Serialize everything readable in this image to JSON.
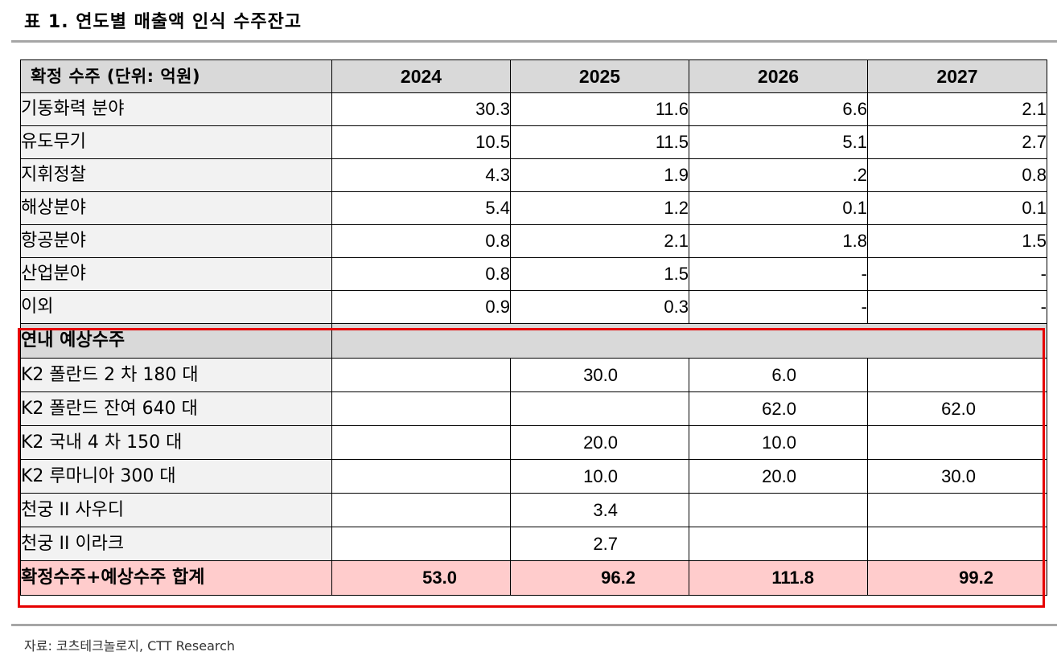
{
  "title": "표 1. 연도별 매출액 인식 수주잔고",
  "header": {
    "label": "확정 수주 (단위: 억원)",
    "years": [
      "2024",
      "2025",
      "2026",
      "2027"
    ]
  },
  "confirmed_rows": [
    {
      "label": "기동화력 분야",
      "values": [
        "30.3",
        "11.6",
        "6.6",
        "2.1"
      ]
    },
    {
      "label": "유도무기",
      "values": [
        "10.5",
        "11.5",
        "5.1",
        "2.7"
      ]
    },
    {
      "label": "지휘정찰",
      "values": [
        "4.3",
        "1.9",
        ".2",
        "0.8"
      ]
    },
    {
      "label": "해상분야",
      "values": [
        "5.4",
        "1.2",
        "0.1",
        "0.1"
      ]
    },
    {
      "label": "항공분야",
      "values": [
        "0.8",
        "2.1",
        "1.8",
        "1.5"
      ]
    },
    {
      "label": "산업분야",
      "values": [
        "0.8",
        "1.5",
        "-",
        "-"
      ]
    },
    {
      "label": "이외",
      "values": [
        "0.9",
        "0.3",
        "-",
        "-"
      ]
    }
  ],
  "expected_section": {
    "label": "연내 예상수주",
    "rows": [
      {
        "label": "K2 폴란드 2 차 180 대",
        "values": [
          "",
          "30.0",
          "6.0",
          ""
        ]
      },
      {
        "label": "K2 폴란드 잔여 640 대",
        "values": [
          "",
          "",
          "62.0",
          "62.0"
        ]
      },
      {
        "label": "K2 국내 4 차 150 대",
        "values": [
          "",
          "20.0",
          "10.0",
          ""
        ]
      },
      {
        "label": "K2 루마니아 300 대",
        "values": [
          "",
          "10.0",
          "20.0",
          "30.0"
        ]
      },
      {
        "label": "천궁 II 사우디",
        "values": [
          "",
          "3.4",
          "",
          ""
        ]
      },
      {
        "label": "천궁 II 이라크",
        "values": [
          "",
          "2.7",
          "",
          ""
        ]
      }
    ]
  },
  "total": {
    "label": "확정수주+예상수주 합계",
    "values": [
      "53.0",
      "96.2",
      "111.8",
      "99.2"
    ]
  },
  "source": "자료: 코츠테크놀로지, CTT Research",
  "colors": {
    "header_bg": "#d9d9d9",
    "label_bg": "#f2f2f2",
    "total_bg": "#ffcccc",
    "highlight_border": "#e60000",
    "rule": "#a6a6a6"
  }
}
